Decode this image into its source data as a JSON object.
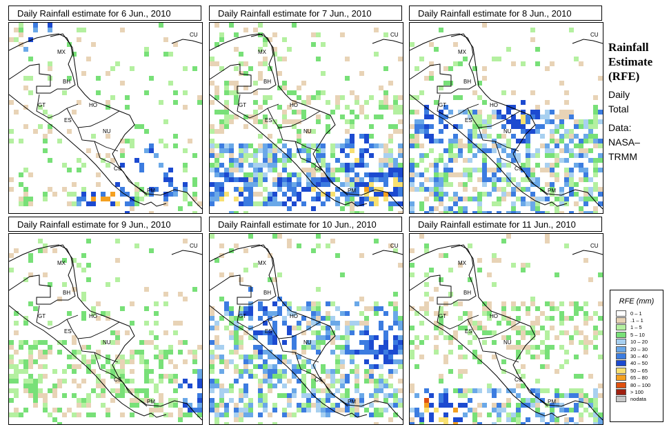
{
  "panels": [
    {
      "title": "Daily Rainfall estimate for  6 Jun., 2010",
      "seed": 6,
      "hot": [
        [
          0.17,
          0.08,
          6
        ],
        [
          0.68,
          0.73,
          7
        ],
        [
          0.8,
          0.82,
          5
        ],
        [
          0.45,
          0.95,
          8
        ],
        [
          0.52,
          0.93,
          7
        ]
      ],
      "density": 0.3,
      "bands": [
        [
          0.84,
          0.95,
          0.55
        ]
      ]
    },
    {
      "title": "Daily Rainfall estimate for  7 Jun., 2010",
      "seed": 7,
      "hot": [
        [
          0.75,
          0.68,
          6
        ],
        [
          0.85,
          0.88,
          7
        ],
        [
          0.96,
          0.85,
          7
        ],
        [
          0.1,
          0.88,
          5
        ],
        [
          0.4,
          0.9,
          5
        ],
        [
          0.57,
          0.9,
          5
        ]
      ],
      "density": 0.4,
      "bands": [
        [
          0.62,
          0.95,
          0.85
        ],
        [
          0.3,
          0.55,
          0.25
        ]
      ]
    },
    {
      "title": "Daily Rainfall estimate for  8 Jun., 2010",
      "seed": 8,
      "hot": [
        [
          0.55,
          0.49,
          5
        ],
        [
          0.57,
          0.52,
          4
        ],
        [
          0.12,
          0.52,
          4
        ]
      ],
      "density": 0.35,
      "bands": [
        [
          0.45,
          1.0,
          0.7
        ]
      ]
    },
    {
      "title": "Daily Rainfall estimate for  9 Jun., 2010",
      "seed": 9,
      "hot": [
        [
          0.97,
          0.82,
          3
        ]
      ],
      "density": 0.3,
      "bands": [
        [
          0.55,
          0.95,
          0.55
        ]
      ]
    },
    {
      "title": "Daily Rainfall estimate for  10 Jun., 2010",
      "seed": 10,
      "hot": [
        [
          0.26,
          0.35,
          3
        ],
        [
          0.32,
          0.53,
          4
        ],
        [
          0.92,
          0.57,
          4
        ],
        [
          0.84,
          0.58,
          3
        ]
      ],
      "density": 0.35,
      "bands": [
        [
          0.35,
          0.95,
          0.65
        ]
      ]
    },
    {
      "title": "Daily Rainfall estimate for  11 Jun., 2010",
      "seed": 11,
      "hot": [
        [
          0.12,
          0.9,
          9
        ],
        [
          0.2,
          0.95,
          8
        ]
      ],
      "density": 0.3,
      "bands": [
        [
          0.35,
          0.65,
          0.45
        ],
        [
          0.8,
          1.0,
          0.6
        ]
      ]
    }
  ],
  "side": {
    "line1": "Rainfall",
    "line2": "Estimate",
    "line3": "(RFE)",
    "daily": "Daily",
    "total": "Total",
    "data_label": "Data:",
    "source1": "NASA–",
    "source2": "TRMM"
  },
  "legend": {
    "title": "RFE (mm)",
    "items": [
      {
        "label": "0 – 1",
        "color": "#ffffff"
      },
      {
        "label": ".1 – 1",
        "color": "#e8d3b6"
      },
      {
        "label": "1 – 5",
        "color": "#b4f0a0"
      },
      {
        "label": "5 – 10",
        "color": "#78e078"
      },
      {
        "label": "10 – 20",
        "color": "#a8d0f0"
      },
      {
        "label": "20 – 30",
        "color": "#6aa8e8"
      },
      {
        "label": "30 – 40",
        "color": "#3c7ce0"
      },
      {
        "label": "40 – 50",
        "color": "#1c4ad0"
      },
      {
        "label": "50 – 65",
        "color": "#f8e070"
      },
      {
        "label": "65 – 80",
        "color": "#f4a020"
      },
      {
        "label": "80 – 100",
        "color": "#e05010"
      },
      {
        "label": "> 100",
        "color": "#a02010"
      },
      {
        "label": "nodata",
        "color": "#c8c8c8"
      }
    ]
  },
  "countries": [
    "MX",
    "BH",
    "GT",
    "HO",
    "ES",
    "NU",
    "CS",
    "PM",
    "CU"
  ]
}
